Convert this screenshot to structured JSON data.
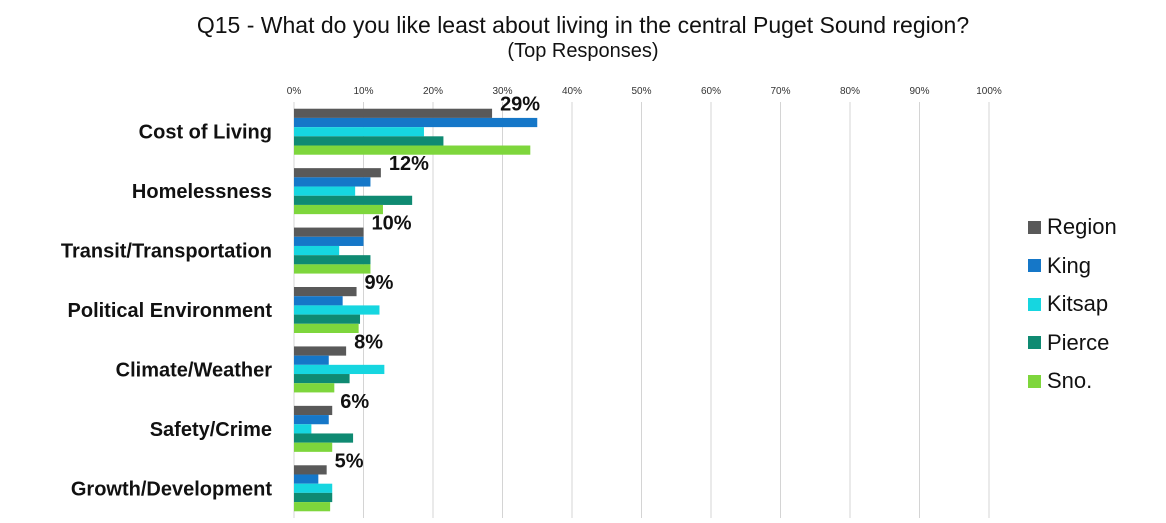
{
  "chart_data": {
    "type": "bar",
    "orientation": "horizontal",
    "title": "Q15 - What do you like least about living in the central Puget Sound region?",
    "subtitle": "(Top Responses)",
    "xlabel": "",
    "ylabel": "",
    "xlim": [
      0,
      100
    ],
    "x_ticks": [
      "0%",
      "10%",
      "20%",
      "30%",
      "40%",
      "50%",
      "60%",
      "70%",
      "80%",
      "90%",
      "100%"
    ],
    "grid": true,
    "legend_position": "right",
    "categories": [
      "Cost of Living",
      "Homelessness",
      "Transit/Transportation",
      "Political Environment",
      "Climate/Weather",
      "Safety/Crime",
      "Growth/Development"
    ],
    "data_labels": [
      "29%",
      "12%",
      "10%",
      "9%",
      "8%",
      "6%",
      "5%"
    ],
    "series": [
      {
        "name": "Region",
        "color": "#595959",
        "values": [
          28.5,
          12.5,
          10,
          9,
          7.5,
          5.5,
          4.7
        ]
      },
      {
        "name": "King",
        "color": "#1577c8",
        "values": [
          35,
          11,
          10,
          7,
          5,
          5,
          3.5
        ]
      },
      {
        "name": "Kitsap",
        "color": "#16d6e0",
        "values": [
          18.7,
          8.8,
          6.5,
          12.3,
          13,
          2.5,
          5.5
        ]
      },
      {
        "name": "Pierce",
        "color": "#0f8a72",
        "values": [
          21.5,
          17,
          11,
          9.5,
          8,
          8.5,
          5.5
        ]
      },
      {
        "name": "Sno.",
        "color": "#7ed63c",
        "values": [
          34,
          12.8,
          11,
          9.3,
          5.8,
          5.5,
          5.2
        ]
      }
    ]
  }
}
